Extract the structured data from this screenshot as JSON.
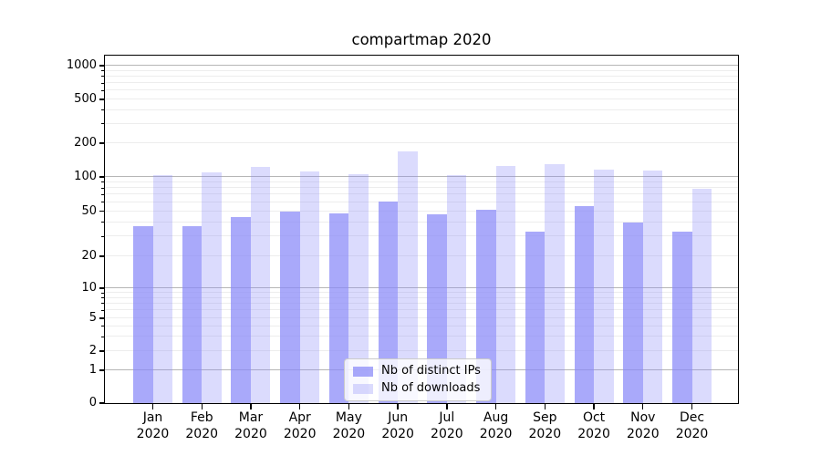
{
  "chart_data": {
    "type": "bar",
    "title": "compartmap 2020",
    "categories": [
      "Jan",
      "Feb",
      "Mar",
      "Apr",
      "May",
      "Jun",
      "Jul",
      "Aug",
      "Sep",
      "Oct",
      "Nov",
      "Dec"
    ],
    "category_year": "2020",
    "series": [
      {
        "name": "Nb of distinct IPs",
        "color": "rgba(136,136,248,0.72)",
        "values": [
          37,
          37,
          44,
          50,
          48,
          61,
          47,
          51,
          33,
          55,
          40,
          33
        ]
      },
      {
        "name": "Nb of downloads",
        "color": "rgba(136,136,248,0.30)",
        "values": [
          103,
          110,
          124,
          112,
          106,
          170,
          104,
          126,
          131,
          116,
          113,
          79
        ]
      }
    ],
    "yscale": "symlog",
    "ylim": [
      0,
      1280
    ],
    "y_ticks": [
      0,
      1,
      2,
      5,
      10,
      20,
      50,
      100,
      200,
      500,
      1000
    ],
    "y_major_gridlines": [
      1,
      10,
      100,
      1000
    ],
    "y_minor_gridlines": [
      2,
      3,
      4,
      5,
      6,
      7,
      8,
      9,
      20,
      30,
      40,
      50,
      60,
      70,
      80,
      90,
      200,
      300,
      400,
      500,
      600,
      700,
      800,
      900
    ],
    "grid": true,
    "legend": {
      "position": "lower-center",
      "items": [
        "Nb of distinct IPs",
        "Nb of downloads"
      ]
    },
    "colors": {
      "major_grid": "#b6b6b6",
      "minor_grid": "#ededed",
      "spine": "#000000",
      "background": "#ffffff",
      "text": "#000000"
    }
  }
}
